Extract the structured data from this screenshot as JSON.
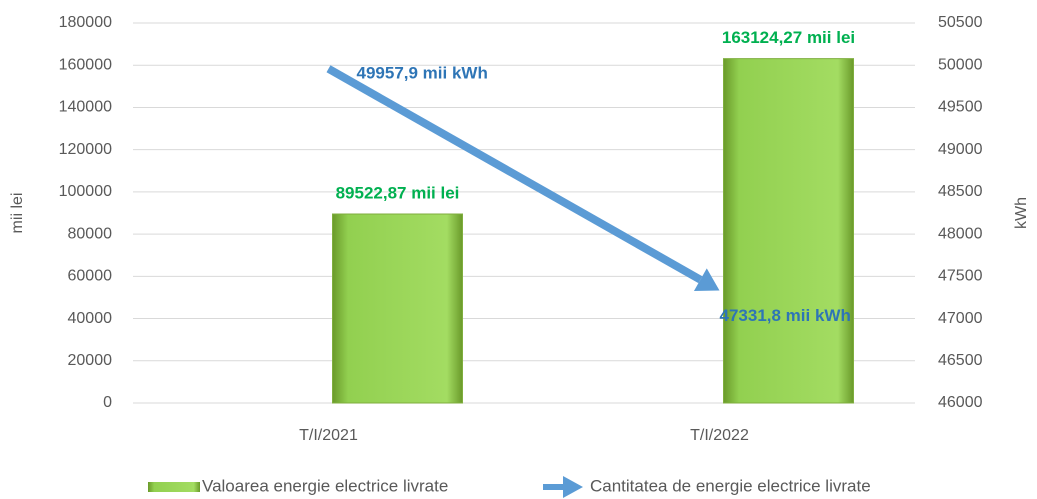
{
  "chart_data": {
    "type": "bar",
    "categories": [
      "T/I/2021",
      "T/I/2022"
    ],
    "series": [
      {
        "name": "Valoarea energie electrice livrate",
        "type": "bar",
        "color": "#92d050",
        "label_color": "#00b050",
        "values": [
          89522.87,
          163124.27
        ],
        "value_labels": [
          "89522,87 mii lei",
          "163124,27 mii lei"
        ]
      },
      {
        "name": "Cantitatea de energie electrice livrate",
        "type": "arrow",
        "axis": "y2",
        "color": "#5b9bd5",
        "label_color": "#2e75b6",
        "values": [
          49957.9,
          47331.8
        ],
        "value_labels": [
          "49957,9 mii kWh",
          "47331,8 mii kWh"
        ]
      }
    ],
    "ylabel": "mii lei",
    "y2label": "kWh",
    "ylim": [
      0,
      180000
    ],
    "yticks": [
      0,
      20000,
      40000,
      60000,
      80000,
      100000,
      120000,
      140000,
      160000,
      180000
    ],
    "y2lim": [
      46000,
      50500
    ],
    "y2ticks": [
      46000,
      46500,
      47000,
      47500,
      48000,
      48500,
      49000,
      49500,
      50000,
      50500
    ],
    "grid": true,
    "legend": "bottom"
  }
}
